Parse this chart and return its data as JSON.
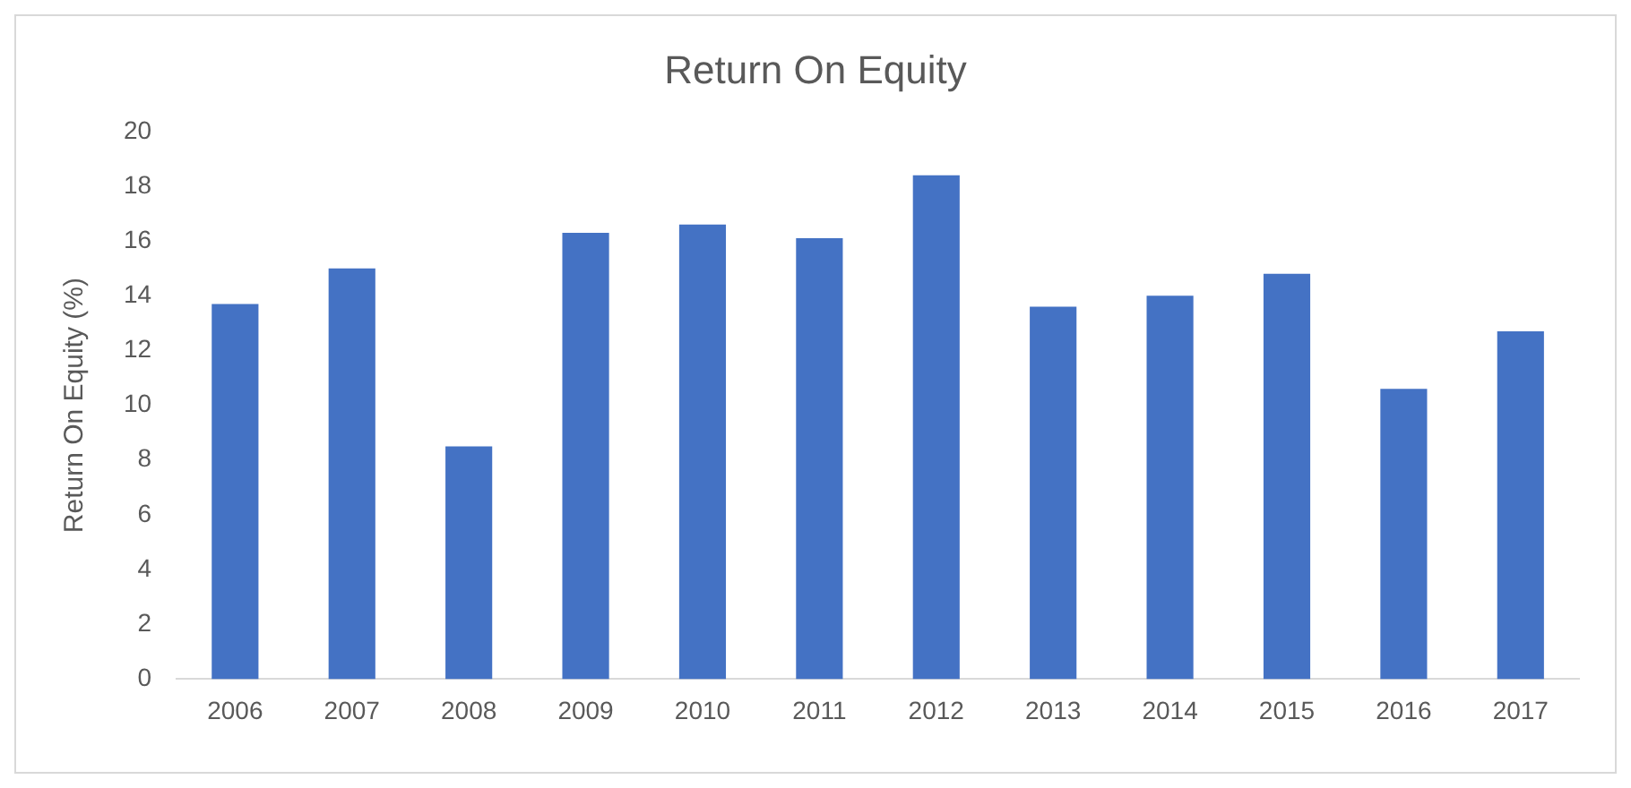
{
  "chart_data": {
    "type": "bar",
    "title": "Return On Equity",
    "ylabel": "Return On Equity (%)",
    "categories": [
      "2006",
      "2007",
      "2008",
      "2009",
      "2010",
      "2011",
      "2012",
      "2013",
      "2014",
      "2015",
      "2016",
      "2017"
    ],
    "values": [
      13.7,
      15.0,
      8.5,
      16.3,
      16.6,
      16.1,
      18.4,
      13.6,
      14.0,
      14.8,
      10.6,
      12.7
    ],
    "color": "#4472c4",
    "ylim": [
      0,
      20
    ],
    "yticks": [
      0,
      2,
      4,
      6,
      8,
      10,
      12,
      14,
      16,
      18,
      20
    ],
    "grid": false
  }
}
